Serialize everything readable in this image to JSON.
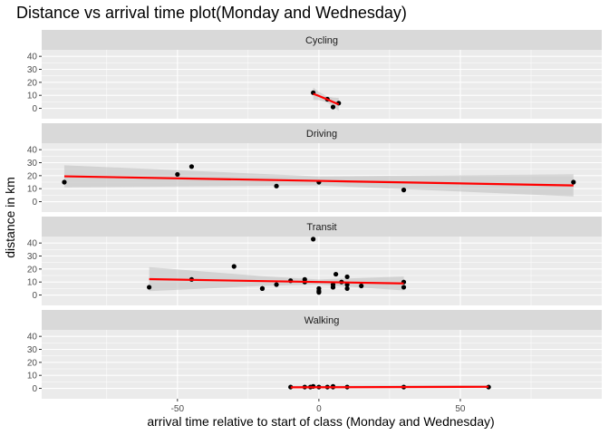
{
  "chart_data": {
    "type": "scatter",
    "title": "Distance vs arrival time plot(Monday and Wednesday)",
    "xlabel": "arrival time relative to start of class (Monday and Wednesday)",
    "ylabel": "distance in km",
    "xlim": [
      -98,
      100
    ],
    "ylim": [
      -8,
      45
    ],
    "x_ticks": [
      -50,
      0,
      50
    ],
    "y_ticks": [
      0,
      10,
      20,
      30,
      40
    ],
    "grid": true,
    "panel_background": "#ebebeb",
    "strip_background": "#d9d9d9",
    "point_color": "#000000",
    "fit_color": "#ff0000",
    "ribbon_color": "#bebebe",
    "facets": [
      {
        "label": "Cycling",
        "points": [
          [
            -2,
            12
          ],
          [
            3,
            7
          ],
          [
            5,
            1
          ],
          [
            7,
            4
          ]
        ],
        "fit": [
          [
            -2,
            11.2
          ],
          [
            0,
            9.5
          ],
          [
            3,
            6.8
          ],
          [
            5,
            4.9
          ],
          [
            7,
            3.0
          ]
        ],
        "band": [
          [
            -2,
            6.5,
            16.0
          ],
          [
            0,
            6.3,
            12.7
          ],
          [
            3,
            4.5,
            9.1
          ],
          [
            5,
            1.5,
            8.3
          ],
          [
            7,
            -2.0,
            8.0
          ]
        ]
      },
      {
        "label": "Driving",
        "points": [
          [
            -90,
            15
          ],
          [
            -50,
            21
          ],
          [
            -45,
            27
          ],
          [
            -15,
            12
          ],
          [
            0,
            15
          ],
          [
            30,
            9
          ],
          [
            90,
            15
          ]
        ],
        "fit": [
          [
            -90,
            19.5
          ],
          [
            0,
            16.0
          ],
          [
            90,
            12.5
          ]
        ],
        "band": [
          [
            -90,
            11.0,
            28.0
          ],
          [
            0,
            12.5,
            19.5
          ],
          [
            90,
            4.0,
            21.0
          ]
        ]
      },
      {
        "label": "Transit",
        "points": [
          [
            -60,
            6
          ],
          [
            -45,
            12
          ],
          [
            -30,
            22
          ],
          [
            -20,
            5
          ],
          [
            -15,
            8
          ],
          [
            -10,
            11
          ],
          [
            -5,
            12
          ],
          [
            -5,
            10
          ],
          [
            -2,
            43
          ],
          [
            0,
            5
          ],
          [
            0,
            3
          ],
          [
            0,
            2
          ],
          [
            5,
            6
          ],
          [
            5,
            8
          ],
          [
            6,
            16
          ],
          [
            8,
            10
          ],
          [
            10,
            14
          ],
          [
            10,
            8
          ],
          [
            10,
            5
          ],
          [
            15,
            7
          ],
          [
            30,
            10
          ],
          [
            30,
            6
          ],
          [
            -20,
            5
          ],
          [
            5,
            6
          ]
        ],
        "fit": [
          [
            -60,
            12.2
          ],
          [
            0,
            10.0
          ],
          [
            30,
            8.9
          ]
        ],
        "band": [
          [
            -60,
            3.0,
            21.5
          ],
          [
            -20,
            7.0,
            14.5
          ],
          [
            0,
            8.0,
            12.0
          ],
          [
            30,
            3.5,
            14.2
          ]
        ]
      },
      {
        "label": "Walking",
        "points": [
          [
            -10,
            1
          ],
          [
            -5,
            1
          ],
          [
            -3,
            1
          ],
          [
            -2,
            1.5
          ],
          [
            0,
            1
          ],
          [
            3,
            1
          ],
          [
            5,
            1
          ],
          [
            5,
            1.5
          ],
          [
            10,
            1
          ],
          [
            30,
            1
          ],
          [
            60,
            1
          ]
        ],
        "fit": [
          [
            -10,
            0.8
          ],
          [
            60,
            1.2
          ]
        ],
        "band": [
          [
            -10,
            0.0,
            2.0
          ],
          [
            60,
            0.2,
            2.4
          ]
        ]
      }
    ]
  }
}
